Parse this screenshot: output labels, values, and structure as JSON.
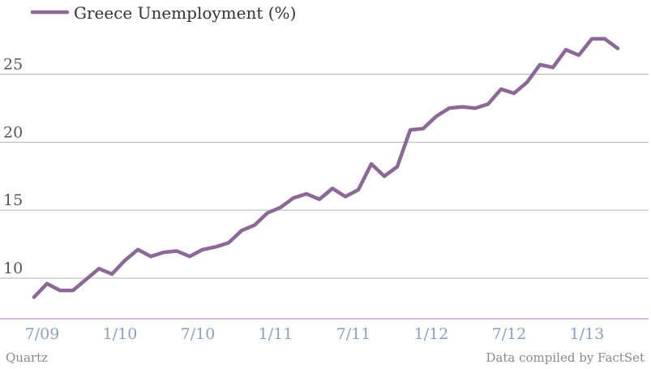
{
  "chart_data": {
    "type": "line",
    "legend": "top-left",
    "grid": true,
    "ylim": [
      7.5,
      28.5
    ],
    "yticks": [
      10,
      15,
      20,
      25
    ],
    "x_tick_labels": [
      "7/09",
      "1/10",
      "7/10",
      "1/11",
      "7/11",
      "1/12",
      "7/12",
      "1/13"
    ],
    "x": [
      "2009-07",
      "2009-08",
      "2009-09",
      "2009-10",
      "2009-11",
      "2009-12",
      "2010-01",
      "2010-02",
      "2010-03",
      "2010-04",
      "2010-05",
      "2010-06",
      "2010-07",
      "2010-08",
      "2010-09",
      "2010-10",
      "2010-11",
      "2010-12",
      "2011-01",
      "2011-02",
      "2011-03",
      "2011-04",
      "2011-05",
      "2011-06",
      "2011-07",
      "2011-08",
      "2011-09",
      "2011-10",
      "2011-11",
      "2011-12",
      "2012-01",
      "2012-02",
      "2012-03",
      "2012-04",
      "2012-05",
      "2012-06",
      "2012-07",
      "2012-08",
      "2012-09",
      "2012-10",
      "2012-11",
      "2012-12",
      "2013-01",
      "2013-02",
      "2013-03",
      "2013-04"
    ],
    "series": [
      {
        "name": "Greece Unemployment (%)",
        "color": "#8b6896",
        "values": [
          8.6,
          9.6,
          9.1,
          9.1,
          9.9,
          10.7,
          10.3,
          11.3,
          12.1,
          11.6,
          11.9,
          12.0,
          11.6,
          12.1,
          12.3,
          12.6,
          13.5,
          13.9,
          14.8,
          15.2,
          15.9,
          16.2,
          15.8,
          16.6,
          16.0,
          16.5,
          18.4,
          17.5,
          18.2,
          20.9,
          21.0,
          21.9,
          22.5,
          22.6,
          22.5,
          22.8,
          23.9,
          23.6,
          24.4,
          25.7,
          25.5,
          26.8,
          26.4,
          27.6,
          27.6,
          26.9
        ]
      }
    ]
  },
  "footer": {
    "source_left": "Quartz",
    "source_right": "Data compiled by FactSet"
  }
}
